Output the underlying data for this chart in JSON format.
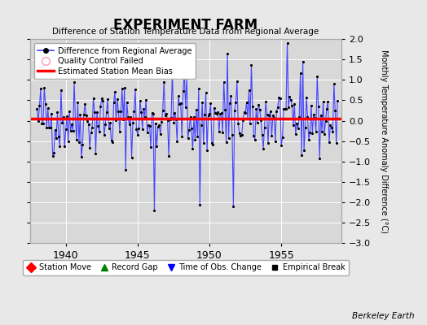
{
  "title": "EXPERIMENT FARM",
  "subtitle": "Difference of Station Temperature Data from Regional Average",
  "ylabel": "Monthly Temperature Anomaly Difference (°C)",
  "xlim": [
    1937.5,
    1959.2
  ],
  "ylim": [
    -3.0,
    2.0
  ],
  "yticks": [
    -3,
    -2.5,
    -2,
    -1.5,
    -1,
    -0.5,
    0,
    0.5,
    1,
    1.5,
    2
  ],
  "xticks": [
    1940,
    1945,
    1950,
    1955
  ],
  "bias_value": 0.05,
  "fig_bg_color": "#e8e8e8",
  "plot_bg_color": "#d8d8d8",
  "line_color": "#4444ff",
  "dot_color": "#000000",
  "bias_color": "#ff0000",
  "watermark": "Berkeley Earth",
  "seed": 42,
  "n_points": 252,
  "start_year": 1938.0
}
